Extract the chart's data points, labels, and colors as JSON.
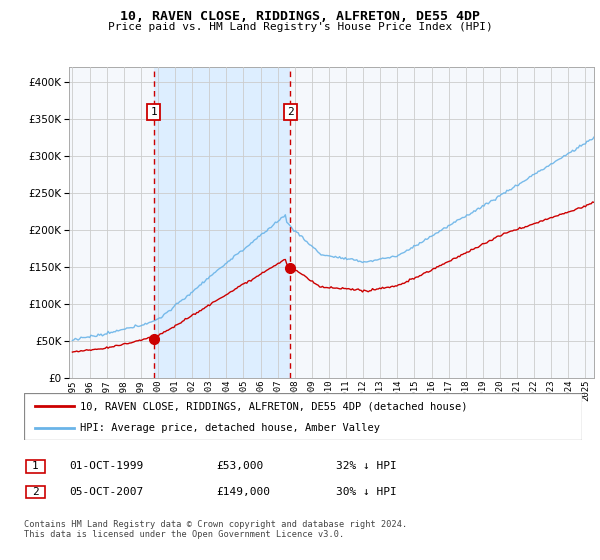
{
  "title": "10, RAVEN CLOSE, RIDDINGS, ALFRETON, DE55 4DP",
  "subtitle": "Price paid vs. HM Land Registry's House Price Index (HPI)",
  "hpi_color": "#6ab4e8",
  "price_color": "#cc0000",
  "vline_color": "#cc0000",
  "shade_color": "#ddeeff",
  "background_color": "#f5f8fc",
  "plot_bg": "#f5f8fc",
  "grid_color": "#cccccc",
  "ylim": [
    0,
    420000
  ],
  "yticks": [
    0,
    50000,
    100000,
    150000,
    200000,
    250000,
    300000,
    350000,
    400000
  ],
  "transaction1": {
    "date_num": 1999.75,
    "price": 53000,
    "label": "1"
  },
  "transaction2": {
    "date_num": 2007.75,
    "price": 149000,
    "label": "2"
  },
  "legend_property": "10, RAVEN CLOSE, RIDDINGS, ALFRETON, DE55 4DP (detached house)",
  "legend_hpi": "HPI: Average price, detached house, Amber Valley",
  "footer": "Contains HM Land Registry data © Crown copyright and database right 2024.\nThis data is licensed under the Open Government Licence v3.0.",
  "xmin": 1994.8,
  "xmax": 2025.5,
  "row1_label": "1",
  "row1_date": "01-OCT-1999",
  "row1_price": "£53,000",
  "row1_pct": "32% ↓ HPI",
  "row2_label": "2",
  "row2_date": "05-OCT-2007",
  "row2_price": "£149,000",
  "row2_pct": "30% ↓ HPI"
}
